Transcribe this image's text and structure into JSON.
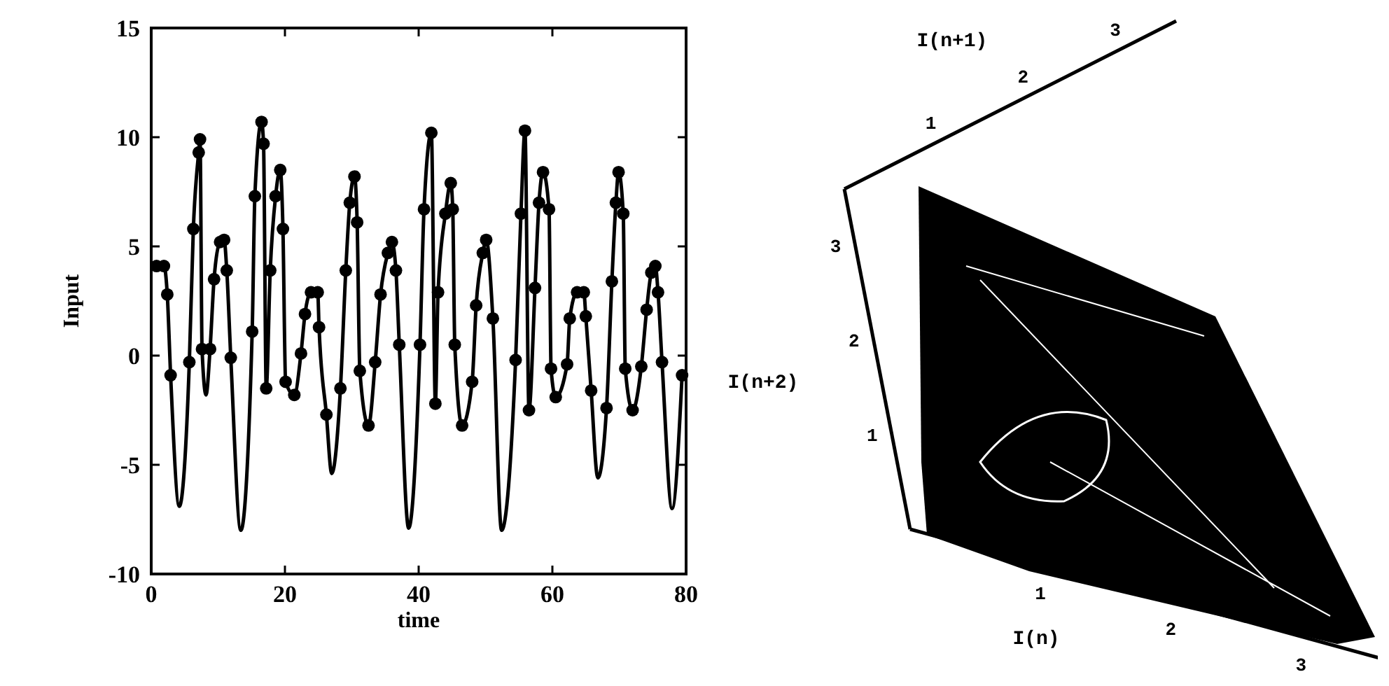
{
  "chart_data": [
    {
      "type": "line",
      "xlabel": "time",
      "ylabel": "Input",
      "xlim": [
        0,
        80
      ],
      "ylim": [
        -10,
        15
      ],
      "xticks": [
        0,
        20,
        40,
        60,
        80
      ],
      "yticks": [
        -10,
        -5,
        0,
        5,
        10,
        15
      ],
      "grid": false,
      "series": [
        {
          "color": "#000000",
          "marker": "none",
          "x": [
            0.8,
            1.9,
            2.4,
            2.9,
            4.2,
            5.7,
            6.3,
            7.1,
            7.3,
            7.6,
            8.2,
            8.8,
            9.4,
            10.3,
            10.9,
            11.3,
            11.9,
            13.4,
            15.1,
            15.5,
            16.5,
            16.8,
            17.2,
            17.8,
            18.6,
            19.3,
            19.7,
            20.1,
            21.4,
            22.4,
            23.0,
            23.9,
            24.9,
            25.1,
            26.2,
            27.0,
            28.3,
            29.1,
            29.7,
            30.4,
            30.8,
            31.2,
            32.5,
            33.5,
            34.3,
            35.4,
            36.0,
            36.6,
            37.1,
            38.5,
            40.2,
            40.8,
            41.9,
            42.5,
            42.9,
            44.0,
            44.8,
            45.1,
            45.4,
            46.5,
            48.0,
            48.6,
            49.6,
            50.1,
            51.1,
            52.4,
            54.5,
            55.3,
            55.9,
            56.5,
            57.4,
            58.0,
            58.6,
            59.5,
            59.8,
            60.5,
            62.2,
            62.6,
            63.7,
            64.7,
            65.0,
            65.8,
            66.8,
            68.1,
            68.9,
            69.5,
            69.9,
            70.6,
            70.9,
            72.0,
            73.3,
            74.1,
            74.8,
            75.4,
            75.8,
            76.4,
            77.9,
            79.4
          ],
          "values": [
            4.1,
            4.1,
            2.8,
            -0.9,
            -6.9,
            -0.3,
            5.8,
            9.3,
            9.9,
            0.3,
            -1.8,
            0.3,
            3.5,
            5.2,
            5.3,
            3.9,
            -0.1,
            -8,
            1.1,
            7.3,
            10.7,
            9.7,
            -1.5,
            3.9,
            7.3,
            8.5,
            5.8,
            -1.2,
            -1.8,
            0.1,
            1.9,
            2.9,
            2.9,
            1.3,
            -2.7,
            -5.4,
            -1.5,
            3.9,
            7,
            8.2,
            6.1,
            -0.7,
            -3.2,
            -0.3,
            2.8,
            4.7,
            5.2,
            3.9,
            0.5,
            -7.9,
            0.5,
            6.7,
            10.2,
            -2.2,
            2.9,
            6.5,
            7.9,
            6.7,
            0.5,
            -3.2,
            -1.2,
            2.3,
            4.7,
            5.3,
            1.7,
            -8,
            -0.2,
            6.5,
            10.3,
            -2.5,
            3.1,
            7,
            8.4,
            6.7,
            -0.6,
            -1.9,
            -0.4,
            1.7,
            2.9,
            2.9,
            1.8,
            -1.6,
            -5.6,
            -2.4,
            3.4,
            7,
            8.4,
            6.5,
            -0.6,
            -2.5,
            -0.5,
            2.1,
            3.8,
            4.1,
            2.9,
            -0.3,
            -7,
            -0.9
          ]
        },
        {
          "type": "scatter",
          "color": "#000000",
          "marker": "circle",
          "x": [
            0.8,
            1.9,
            2.4,
            2.9,
            5.7,
            6.3,
            7.1,
            7.3,
            7.6,
            8.8,
            9.4,
            10.3,
            10.9,
            11.3,
            11.9,
            15.1,
            15.5,
            16.5,
            16.8,
            17.2,
            17.8,
            18.6,
            19.3,
            19.7,
            20.1,
            21.4,
            22.4,
            23.0,
            23.9,
            24.9,
            25.1,
            26.2,
            28.3,
            29.1,
            29.7,
            30.4,
            30.8,
            31.2,
            32.5,
            33.5,
            34.3,
            35.4,
            36.0,
            36.6,
            37.1,
            40.2,
            40.8,
            41.9,
            42.5,
            42.9,
            44.0,
            44.8,
            45.1,
            45.4,
            46.5,
            48.0,
            48.6,
            49.6,
            50.1,
            51.1,
            54.5,
            55.3,
            55.9,
            56.5,
            57.4,
            58.0,
            58.6,
            59.5,
            59.8,
            60.5,
            62.2,
            62.6,
            63.7,
            64.7,
            65.0,
            65.8,
            68.1,
            68.9,
            69.5,
            69.9,
            70.6,
            70.9,
            72.0,
            73.3,
            74.1,
            74.8,
            75.4,
            75.8,
            76.4,
            79.4
          ],
          "values": [
            4.1,
            4.1,
            2.8,
            -0.9,
            -0.3,
            5.8,
            9.3,
            9.9,
            0.3,
            0.3,
            3.5,
            5.2,
            5.3,
            3.9,
            -0.1,
            1.1,
            7.3,
            10.7,
            9.7,
            -1.5,
            3.9,
            7.3,
            8.5,
            5.8,
            -1.2,
            -1.8,
            0.1,
            1.9,
            2.9,
            2.9,
            1.3,
            -2.7,
            -1.5,
            3.9,
            7,
            8.2,
            6.1,
            -0.7,
            -3.2,
            -0.3,
            2.8,
            4.7,
            5.2,
            3.9,
            0.5,
            0.5,
            6.7,
            10.2,
            -2.2,
            2.9,
            6.5,
            7.9,
            6.7,
            0.5,
            -3.2,
            -1.2,
            2.3,
            4.7,
            5.3,
            1.7,
            -0.2,
            6.5,
            10.3,
            -2.5,
            3.1,
            7,
            8.4,
            6.7,
            -0.6,
            -1.9,
            -0.4,
            1.7,
            2.9,
            2.9,
            1.8,
            -1.6,
            -2.4,
            3.4,
            7,
            8.4,
            6.5,
            -0.6,
            -2.5,
            -0.5,
            2.1,
            3.8,
            4.1,
            2.9,
            -0.3,
            -0.9
          ]
        }
      ]
    },
    {
      "type": "other",
      "xlabel": "I(n)",
      "ylabel": "I(n+2)",
      "x2label": "I(n+1)",
      "annotations": [
        "1",
        "2",
        "3",
        "1",
        "2",
        "3",
        "1",
        "2",
        "3"
      ]
    }
  ]
}
